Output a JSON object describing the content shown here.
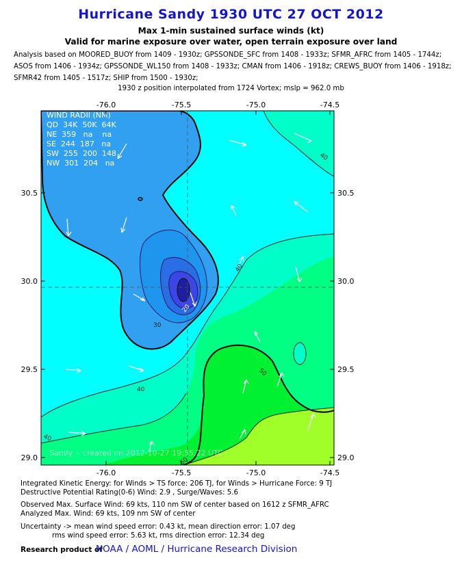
{
  "header": {
    "title": "Hurricane Sandy 1930 UTC 27 OCT 2012",
    "subtitle_units": "Max 1-min sustained surface winds (kt)",
    "subtitle_valid": "Valid for marine exposure over water, open terrain exposure over land",
    "analysis_lines": [
      "Analysis based on MOORED_BUOY from 1409 - 1930z; GPSSONDE_SFC from 1408 - 1933z; SFMR_AFRC from 1405 - 1744z;",
      "ASOS from 1406 - 1934z; GPSSONDE_WL150 from 1408 - 1933z; CMAN from 1406 - 1918z; CREWS_BUOY from 1406 - 1918z;",
      "SFMR42 from 1405 - 1517z; SHIP from 1500 - 1930z;"
    ],
    "position_note": "1930 z position interpolated from 1724 Vortex; mslp = 962.0 mb"
  },
  "chart_data": {
    "type": "contour",
    "x_ticks": [
      "-76.0",
      "-75.5",
      "-75.0",
      "-74.5"
    ],
    "y_ticks": [
      "30.5",
      "30.0",
      "29.5",
      "29.0"
    ],
    "xlim": [
      -76.4,
      -74.4
    ],
    "ylim": [
      28.96,
      31.0
    ],
    "center": {
      "lon": -75.45,
      "lat": 29.95
    },
    "contour_labels": [
      "40",
      "40",
      "40",
      "40",
      "50",
      "30",
      "20",
      "60"
    ],
    "wind_radii": {
      "title": "WIND RADII (NM)",
      "header": "QD  34K  50K  64K",
      "rows": [
        "NE  359   na    na",
        "SE  244  187   na",
        "SW  255  200  148",
        "NW  301  204   na"
      ]
    },
    "watermark": "Sandy -- created on 2012-10-27 19:55:22 UTC",
    "colors": {
      "level_20": "#3c46e6",
      "level_30": "#32a0f0",
      "level_40": "#00ffff",
      "level_50": "#00ffc8",
      "level_60": "#00ff82",
      "level_70": "#00f032",
      "level_80": "#a0ff28",
      "center_dark": "#1e1ea0",
      "vector": "#ffffff"
    }
  },
  "footer": {
    "ike": "Integrated Kinetic Energy: for Winds > TS force: 206 TJ, for Winds > Hurricane Force: 9 TJ",
    "dpr": "Destructive Potential Rating(0-6)   Wind: 2.9 , Surge/Waves: 5.6",
    "observed": "Observed Max. Surface Wind: 69 kts, 110 nm SW of center based on 1612 z SFMR_AFRC",
    "analyzed": "Analyzed Max. Wind: 69 kts, 109 nm  SW of center",
    "uncert1": "Uncertainty -> mean wind speed error: 0.43 kt, mean direction error: 1.07 deg",
    "uncert2": "rms wind speed error: 5.63 kt, rms direction error: 12.34 deg",
    "research": "Research product of",
    "org": "NOAA  /  AOML  /  Hurricane Research Division"
  }
}
